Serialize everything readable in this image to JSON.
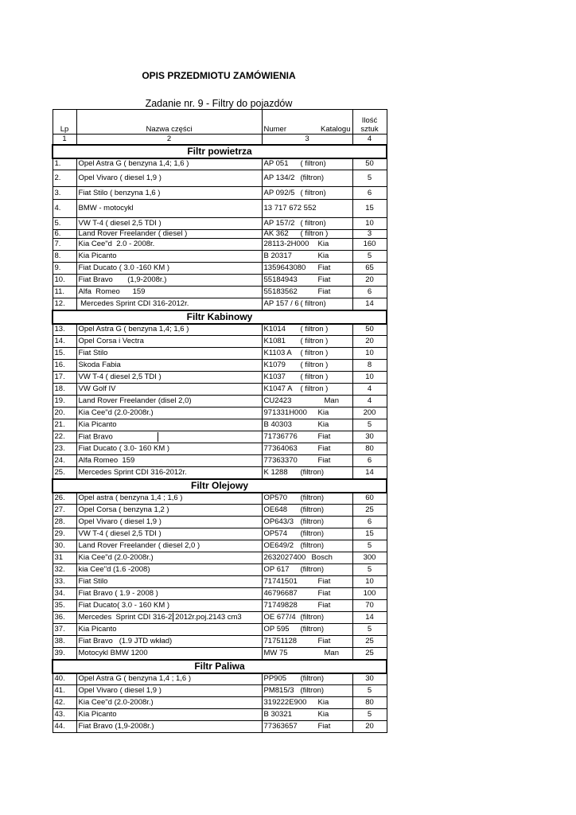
{
  "title": "OPIS PRZEDMIOTU ZAMÓWIENIA",
  "subtitle": "Zadanie nr. 9  - Filtry do pojazdów",
  "header": {
    "lp": "Lp",
    "name": "Nazwa części",
    "number_a": "Numer",
    "number_b": "Katalogu",
    "qty": "Ilość\nsztuk"
  },
  "column_numbers": [
    "1",
    "2",
    "3",
    "4"
  ],
  "sections": [
    {
      "title": "Filtr powietrza",
      "rows": [
        {
          "lp": "1.",
          "name": "Opel Astra G ( benzyna 1,4; 1,6 )",
          "code": "AP 051",
          "brand": "( filtron)",
          "qty": "50"
        },
        {
          "lp": "2.",
          "name": "Opel Vivaro ( diesel 1,9 )",
          "code": "AP 134/2",
          "brand": "(filtron)",
          "qty": "5"
        },
        {
          "lp": "3.",
          "name": "Fiat Stilo ( benzyna 1,6 )",
          "code": "AP 092/5",
          "brand": "( filtron)",
          "qty": "6"
        },
        {
          "lp": "4.",
          "name": "BMW - motocykl",
          "code": "13 717 672 552",
          "brand": "",
          "qty": "15"
        },
        {
          "lp": "5.",
          "name": "VW T-4 ( diesel 2,5 TDI )",
          "code": "AP 157/2",
          "brand": "( filtron)",
          "qty": "10"
        },
        {
          "lp": "6.",
          "name": "Land Rover Freelander ( diesel )",
          "code": "AK 362",
          "brand": "( filtron )",
          "qty": "3"
        },
        {
          "lp": "7.",
          "name": "Kia Cee\"d  2.0 - 2008r.",
          "code": "28113-2H000",
          "brand": "Kia",
          "qty": "160"
        },
        {
          "lp": "8.",
          "name": "Kia Picanto",
          "code": "B 20317",
          "brand": "Kia",
          "qty": "5"
        },
        {
          "lp": "9.",
          "name": "Fiat Ducato ( 3.0 -160 KM )",
          "code": "1359643080",
          "brand": "Fiat",
          "qty": "65"
        },
        {
          "lp": "10.",
          "name": "Fiat Bravo       (1,9-2008r.)",
          "code": "55184943",
          "brand": "Fiat",
          "qty": "20"
        },
        {
          "lp": "11.",
          "name": "Alfa  Romeo      159",
          "code": "55183562",
          "brand": "Fiat",
          "qty": "6"
        },
        {
          "lp": "12.",
          "name": " Mercedes Sprint CDI 316-2012r.",
          "code": "AP 157 / 6",
          "brand": "( filtron)",
          "qty": "14"
        }
      ]
    },
    {
      "title": "Filtr Kabinowy",
      "rows": [
        {
          "lp": "13.",
          "name": "Opel Astra G ( benzyna 1,4; 1,6 )",
          "code": "K1014",
          "brand": "( filtron )",
          "qty": "50"
        },
        {
          "lp": "14.",
          "name": "Opel Corsa i Vectra",
          "code": "K1081",
          "brand": "( filtron )",
          "qty": "20"
        },
        {
          "lp": "15.",
          "name": "Fiat Stilo",
          "code": "K1103 A",
          "brand": "( filtron )",
          "qty": "10"
        },
        {
          "lp": "16.",
          "name": "Skoda Fabia",
          "code": "K1079",
          "brand": "( filtron )",
          "qty": "8"
        },
        {
          "lp": "17.",
          "name": "VW T-4 ( diesel 2,5 TDI )",
          "code": "K1037",
          "brand": "( filtron )",
          "qty": "10"
        },
        {
          "lp": "18.",
          "name": "VW Golf IV",
          "code": "K1047 A",
          "brand": "( filtron )",
          "qty": "4"
        },
        {
          "lp": "19.",
          "name": "Land Rover Freelander (disel 2,0)",
          "code": "CU2423",
          "brand": "Man",
          "qty": "4"
        },
        {
          "lp": "20.",
          "name": "Kia Cee\"d (2.0-2008r.)",
          "code": "971331H000",
          "brand": "Kia",
          "qty": "200"
        },
        {
          "lp": "21.",
          "name": "Kia Picanto",
          "code": "B 40303",
          "brand": "Kia",
          "qty": "5"
        },
        {
          "lp": "22.",
          "name": "Fiat Bravo",
          "code": "71736776",
          "brand": "Fiat",
          "qty": "30"
        },
        {
          "lp": "23.",
          "name": "Fiat Ducato ( 3.0- 160 KM )",
          "code": "77364063",
          "brand": "Fiat",
          "qty": "80"
        },
        {
          "lp": "24.",
          "name": "Alfa Romeo  159",
          "code": "77363370",
          "brand": "Fiat",
          "qty": "6"
        },
        {
          "lp": "25.",
          "name": "Mercedes Sprint CDI 316-2012r.",
          "code": "K 1288",
          "brand": "(filtron)",
          "qty": "14"
        }
      ]
    },
    {
      "title": "Filtr Olejowy",
      "rows": [
        {
          "lp": "26.",
          "name": "Opel astra ( benzyna 1,4 ; 1,6 )",
          "code": "OP570",
          "brand": "(filtron)",
          "qty": "60"
        },
        {
          "lp": "27.",
          "name": "Opel Corsa ( benzyna 1,2 )",
          "code": "OE648",
          "brand": "(filtron)",
          "qty": "25"
        },
        {
          "lp": "28.",
          "name": "Opel Vivaro ( diesel 1,9 )",
          "code": "OP643/3",
          "brand": "(filtron)",
          "qty": "6"
        },
        {
          "lp": "29.",
          "name": "VW T-4 ( diesel 2,5 TDI )",
          "code": "OP574",
          "brand": "(filtron)",
          "qty": "15"
        },
        {
          "lp": "30.",
          "name": "Land Rover Freelander ( diesel 2,0 )",
          "code": "OE649/2",
          "brand": "(filtron)",
          "qty": "5"
        },
        {
          "lp": "31",
          "name": "Kia Cee\"d (2.0-2008r.)",
          "code": "2632027400",
          "brand": "Bosch",
          "qty": "300"
        },
        {
          "lp": "32.",
          "name": "kia Cee\"d (1.6 -2008)",
          "code": "OP 617",
          "brand": "(filtron)",
          "qty": "5"
        },
        {
          "lp": "33.",
          "name": "Fiat Stilo",
          "code": "71741501",
          "brand": "Fiat",
          "qty": "10"
        },
        {
          "lp": "34.",
          "name": "Fiat Bravo ( 1.9 - 2008 )",
          "code": "46796687",
          "brand": "Fiat",
          "qty": "100"
        },
        {
          "lp": "35.",
          "name": "Fiat Ducato( 3.0 - 160 KM )",
          "code": "71749828",
          "brand": "Fiat",
          "qty": "70"
        },
        {
          "lp": "36.",
          "name": "Mercedes  Sprint CDI 316-2",
          "name_b": "2012r.poj.2143 cm3",
          "code": "OE 677/4",
          "brand": "(filtron)",
          "qty": "14"
        },
        {
          "lp": "37.",
          "name": "Kia Picanto",
          "code": "OP 595",
          "brand": "(filtron)",
          "qty": "5"
        },
        {
          "lp": "38.",
          "name": "Fiat Bravo   (1.9 JTD wkład)",
          "code": "71751128",
          "brand": "Fiat",
          "qty": "25"
        },
        {
          "lp": "39.",
          "name": "Motocykl BMW 1200",
          "code": "MW 75",
          "brand": "Man",
          "qty": "25"
        }
      ]
    },
    {
      "title": "Filtr Paliwa",
      "rows": [
        {
          "lp": "40.",
          "name": "Opel Astra G ( benzyna 1,4 ; 1,6 )",
          "code": "PP905",
          "brand": "(filtron)",
          "qty": "30"
        },
        {
          "lp": "41.",
          "name": "Opel Vivaro ( diesel 1,9 )",
          "code": "PM815/3",
          "brand": "(filtron)",
          "qty": "5"
        },
        {
          "lp": "42.",
          "name": "Kia Cee\"d (2.0-2008r.)",
          "code": "319222E900",
          "brand": "Kia",
          "qty": "80"
        },
        {
          "lp": "43.",
          "name": "Kia Picanto",
          "code": "B 30321",
          "brand": "Kia",
          "qty": "5"
        },
        {
          "lp": "44.",
          "name": "Fiat Bravo (1,9-2008r.)",
          "code": "77363657",
          "brand": "Fiat",
          "qty": "20"
        }
      ]
    }
  ]
}
